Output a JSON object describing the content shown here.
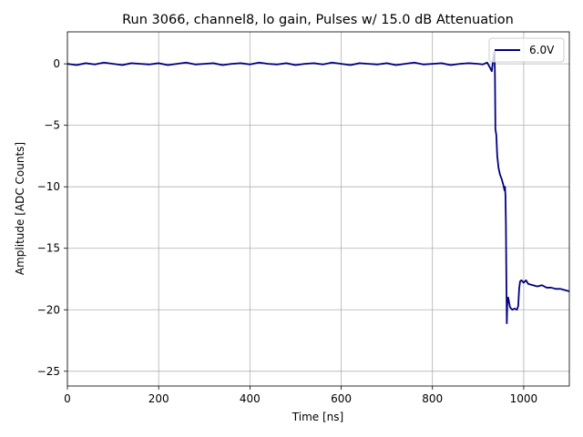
{
  "chart_data": {
    "type": "line",
    "title": "Run 3066, channel8, lo gain, Pulses w/ 15.0 dB Attenuation",
    "xlabel": "Time [ns]",
    "ylabel": "Amplitude [ADC Counts]",
    "xlim": [
      0,
      1100
    ],
    "ylim": [
      -26.2,
      2.6
    ],
    "xticks": [
      0,
      200,
      400,
      600,
      800,
      1000
    ],
    "yticks": [
      0,
      -5,
      -10,
      -15,
      -20,
      -25
    ],
    "xtick_labels": [
      "0",
      "200",
      "400",
      "600",
      "800",
      "1000"
    ],
    "ytick_labels": [
      "0",
      "−5",
      "−10",
      "−15",
      "−20",
      "−25"
    ],
    "grid": true,
    "legend_position": "top-right",
    "series": [
      {
        "name": "6.0V",
        "color": "#000080",
        "x": [
          0,
          20,
          40,
          60,
          80,
          100,
          120,
          140,
          160,
          180,
          200,
          220,
          240,
          260,
          280,
          300,
          320,
          340,
          360,
          380,
          400,
          420,
          440,
          460,
          480,
          500,
          520,
          540,
          560,
          580,
          600,
          620,
          640,
          660,
          680,
          700,
          720,
          740,
          760,
          780,
          800,
          820,
          840,
          860,
          880,
          900,
          910,
          920,
          926,
          930,
          933,
          935,
          936,
          937,
          938,
          940,
          942,
          945,
          948,
          952,
          955,
          958,
          959,
          960,
          961,
          962,
          963,
          964,
          966,
          970,
          975,
          980,
          985,
          988,
          990,
          992,
          995,
          1000,
          1005,
          1010,
          1020,
          1030,
          1040,
          1050,
          1060,
          1070,
          1080,
          1090,
          1100
        ],
        "y": [
          0.0,
          -0.1,
          0.05,
          -0.05,
          0.1,
          0.0,
          -0.1,
          0.05,
          0.0,
          -0.05,
          0.05,
          -0.1,
          0.0,
          0.1,
          -0.05,
          0.0,
          0.05,
          -0.1,
          0.0,
          0.05,
          -0.05,
          0.1,
          0.0,
          -0.05,
          0.05,
          -0.1,
          0.0,
          0.05,
          -0.05,
          0.1,
          0.0,
          -0.1,
          0.05,
          0.0,
          -0.05,
          0.05,
          -0.1,
          0.0,
          0.1,
          -0.05,
          0.0,
          0.05,
          -0.1,
          0.0,
          0.05,
          0.0,
          -0.05,
          0.1,
          -0.3,
          -0.6,
          0.3,
          0.8,
          1.0,
          -1.0,
          -5.3,
          -5.8,
          -7.5,
          -8.5,
          -9.0,
          -9.4,
          -9.8,
          -10.3,
          -10.0,
          -10.7,
          -13.0,
          -17.5,
          -21.1,
          -19.5,
          -19.0,
          -19.8,
          -20.0,
          -19.9,
          -20.0,
          -19.7,
          -18.3,
          -17.7,
          -17.6,
          -17.8,
          -17.6,
          -17.9,
          -18.0,
          -18.1,
          -18.0,
          -18.2,
          -18.2,
          -18.3,
          -18.3,
          -18.4,
          -18.5
        ]
      }
    ]
  }
}
